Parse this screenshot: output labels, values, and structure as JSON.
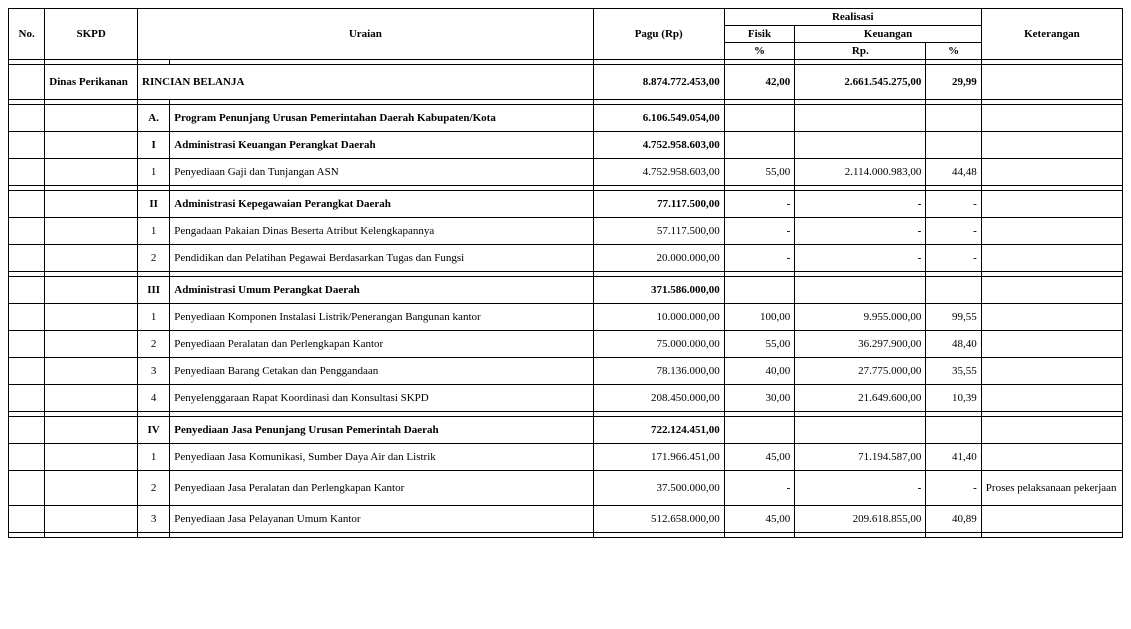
{
  "header": {
    "no": "No.",
    "skpd": "SKPD",
    "uraian": "Uraian",
    "pagu": "Pagu (Rp)",
    "realisasi": "Realisasi",
    "fisik": "Fisik",
    "keuangan": "Keuangan",
    "pct": "%",
    "rp": "Rp.",
    "ket": "Keterangan"
  },
  "skpd": "Dinas Perikanan",
  "rincian": {
    "label": "RINCIAN BELANJA",
    "pagu": "8.874.772.453,00",
    "fisik": "42,00",
    "krp": "2.661.545.275,00",
    "kpct": "29,99"
  },
  "A": {
    "idx": "A.",
    "label": "Program Penunjang Urusan Pemerintahan Daerah Kabupaten/Kota",
    "pagu": "6.106.549.054,00"
  },
  "I": {
    "idx": "I",
    "label": "Administrasi Keuangan Perangkat Daerah",
    "pagu": "4.752.958.603,00"
  },
  "I1": {
    "idx": "1",
    "label": "Penyediaan Gaji dan Tunjangan ASN",
    "pagu": "4.752.958.603,00",
    "fisik": "55,00",
    "krp": "2.114.000.983,00",
    "kpct": "44,48"
  },
  "II": {
    "idx": "II",
    "label": "Administrasi Kepegawaian Perangkat Daerah",
    "pagu": "77.117.500,00",
    "fisik": "-",
    "krp": "-",
    "kpct": "-"
  },
  "II1": {
    "idx": "1",
    "label": "Pengadaan Pakaian Dinas Beserta Atribut Kelengkapannya",
    "pagu": "57.117.500,00",
    "fisik": "-",
    "krp": "-",
    "kpct": "-"
  },
  "II2": {
    "idx": "2",
    "label": "Pendidikan dan Pelatihan Pegawai Berdasarkan Tugas dan Fungsi",
    "pagu": "20.000.000,00",
    "fisik": "-",
    "krp": "-",
    "kpct": "-"
  },
  "III": {
    "idx": "III",
    "label": "Administrasi Umum Perangkat Daerah",
    "pagu": "371.586.000,00"
  },
  "III1": {
    "idx": "1",
    "label": "Penyediaan Komponen Instalasi Listrik/Penerangan Bangunan kantor",
    "pagu": "10.000.000,00",
    "fisik": "100,00",
    "krp": "9.955.000,00",
    "kpct": "99,55"
  },
  "III2": {
    "idx": "2",
    "label": "Penyediaan Peralatan dan Perlengkapan Kantor",
    "pagu": "75.000.000,00",
    "fisik": "55,00",
    "krp": "36.297.900,00",
    "kpct": "48,40"
  },
  "III3": {
    "idx": "3",
    "label": "Penyediaan Barang Cetakan dan Penggandaan",
    "pagu": "78.136.000,00",
    "fisik": "40,00",
    "krp": "27.775.000,00",
    "kpct": "35,55"
  },
  "III4": {
    "idx": "4",
    "label": "Penyelenggaraan Rapat Koordinasi dan Konsultasi SKPD",
    "pagu": "208.450.000,00",
    "fisik": "30,00",
    "krp": "21.649.600,00",
    "kpct": "10,39"
  },
  "IV": {
    "idx": "IV",
    "label": "Penyediaan Jasa Penunjang Urusan Pemerintah Daerah",
    "pagu": "722.124.451,00"
  },
  "IV1": {
    "idx": "1",
    "label": "Penyediaan Jasa Komunikasi, Sumber Daya Air dan Listrik",
    "pagu": "171.966.451,00",
    "fisik": "45,00",
    "krp": "71.194.587,00",
    "kpct": "41,40"
  },
  "IV2": {
    "idx": "2",
    "label": "Penyediaan Jasa Peralatan dan Perlengkapan Kantor",
    "pagu": "37.500.000,00",
    "fisik": "-",
    "krp": "-",
    "kpct": "-",
    "ket": "Proses pelaksanaan pekerjaan"
  },
  "IV3": {
    "idx": "3",
    "label": "Penyediaan Jasa Pelayanan Umum Kantor",
    "pagu": "512.658.000,00",
    "fisik": "45,00",
    "krp": "209.618.855,00",
    "kpct": "40,89"
  }
}
